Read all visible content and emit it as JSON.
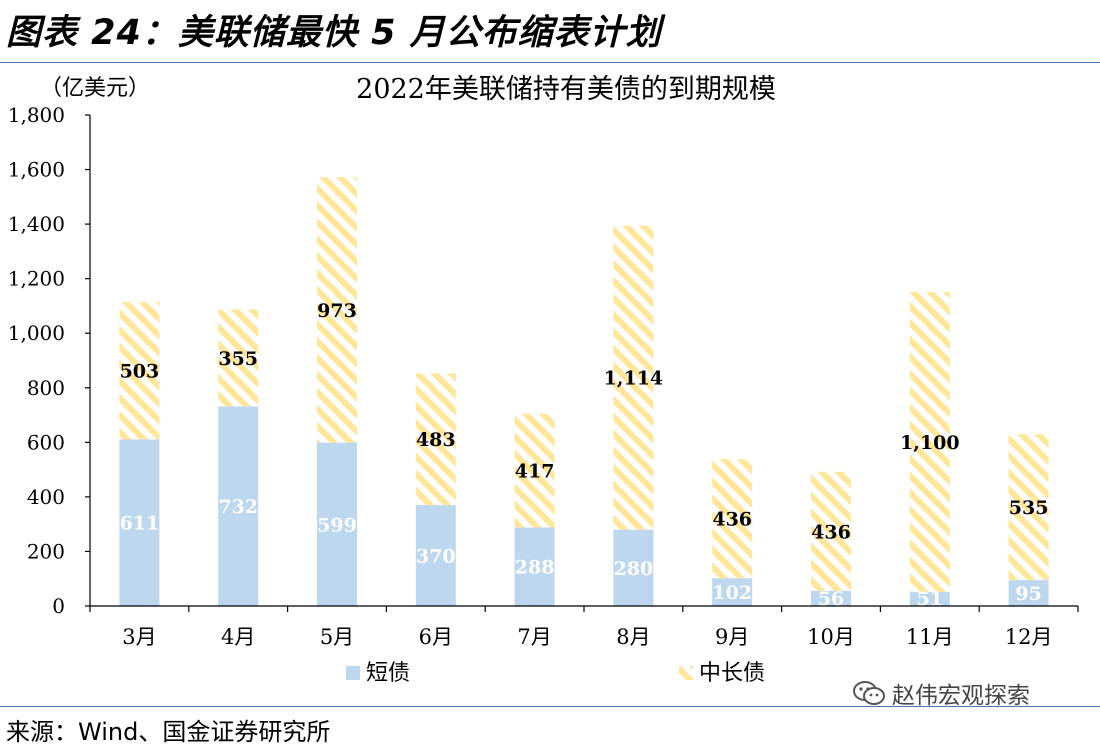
{
  "figure": {
    "title": "图表 24：美联储最快 5 月公布缩表计划",
    "source": "来源：Wind、国金证券研究所",
    "watermark": "赵伟宏观探索"
  },
  "chart_data": {
    "type": "bar",
    "stacked": true,
    "title": "2022年美联储持有美债的到期规模",
    "ylabel": "（亿美元）",
    "xlabel": "",
    "categories": [
      "3月",
      "4月",
      "5月",
      "6月",
      "7月",
      "8月",
      "9月",
      "10月",
      "11月",
      "12月"
    ],
    "ylim": [
      0,
      1800
    ],
    "ytick_labels": [
      "0",
      "200",
      "400",
      "600",
      "800",
      "1,000",
      "1,200",
      "1,400",
      "1,600",
      "1,800"
    ],
    "series": [
      {
        "name": "短债",
        "values": [
          611,
          732,
          599,
          370,
          288,
          280,
          102,
          56,
          51,
          95
        ],
        "labels": [
          "611",
          "732",
          "599",
          "370",
          "288",
          "280",
          "102",
          "56",
          "51",
          "95"
        ],
        "color": "#bdd7ee",
        "label_color": "#ffffff",
        "pattern": "solid"
      },
      {
        "name": "中长债",
        "values": [
          503,
          355,
          973,
          483,
          417,
          1114,
          436,
          436,
          1100,
          535
        ],
        "labels": [
          "503",
          "355",
          "973",
          "483",
          "417",
          "1,114",
          "436",
          "436",
          "1,100",
          "535"
        ],
        "color": "#ffe699",
        "label_color": "#000000",
        "pattern": "diagonal-stripes"
      }
    ],
    "legend_position": "bottom",
    "grid": false
  }
}
